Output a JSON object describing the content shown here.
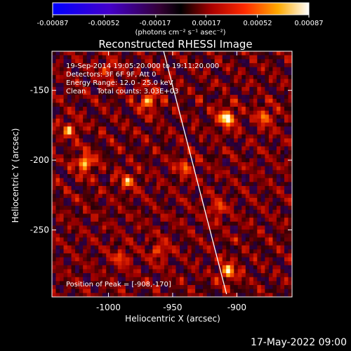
{
  "colorbar": {
    "tick_labels": [
      "-0.00087",
      "-0.00052",
      "-0.00017",
      "0.00017",
      "0.00052",
      "0.00087"
    ],
    "tick_values": [
      -0.00087,
      -0.00052,
      -0.00017,
      0.00017,
      0.00052,
      0.00087
    ],
    "range": [
      -0.00087,
      0.00087
    ],
    "unit": "(photons cm⁻² s⁻¹ asec⁻²)"
  },
  "annotations": {
    "time": "19-Sep-2014 19:05:20.000 to 19:11:20.000",
    "detectors": "Detectors: 3F 6F 9F, Att 0",
    "energy": "Energy Range: 12.0 - 25.0 keV",
    "method": "Clean     Total counts: 3.03E+03",
    "peak": "Position of Peak = [-908,-170]"
  },
  "footer": {
    "date": "17-May-2022 09:00"
  },
  "chart_data": {
    "type": "heatmap",
    "title": "Reconstructed RHESSI Image",
    "xlabel": "Heliocentric X (arcsec)",
    "ylabel": "Heliocentric Y (arcsec)",
    "xlim": [
      -1044,
      -857
    ],
    "ylim": [
      -298,
      -122
    ],
    "xticks": [
      -1000,
      -950,
      -900
    ],
    "xtick_labels": [
      "-1000",
      "-950",
      "-900"
    ],
    "yticks": [
      -150,
      -200,
      -250
    ],
    "ytick_labels": [
      "-150",
      "-200",
      "-250"
    ],
    "colormap": "red-temperature with blue-purple negatives",
    "limb_line": [
      [
        -957,
        -122
      ],
      [
        -908,
        -296
      ]
    ],
    "peaks": [
      {
        "x": -908,
        "y": -170,
        "intensity": 1.0
      },
      {
        "x": -1018,
        "y": -202,
        "intensity": 0.85
      },
      {
        "x": -969,
        "y": -158,
        "intensity": 0.75
      },
      {
        "x": -907,
        "y": -280,
        "intensity": 0.8
      },
      {
        "x": -878,
        "y": -169,
        "intensity": 0.6
      },
      {
        "x": -1030,
        "y": -178,
        "intensity": 0.55
      },
      {
        "x": -985,
        "y": -215,
        "intensity": 0.55
      },
      {
        "x": -1000,
        "y": -135,
        "intensity": 0.45
      },
      {
        "x": -940,
        "y": -205,
        "intensity": 0.5
      },
      {
        "x": -915,
        "y": -235,
        "intensity": 0.5
      },
      {
        "x": -960,
        "y": -265,
        "intensity": 0.5
      },
      {
        "x": -990,
        "y": -270,
        "intensity": 0.45
      }
    ],
    "grid": false,
    "legend": "none"
  }
}
